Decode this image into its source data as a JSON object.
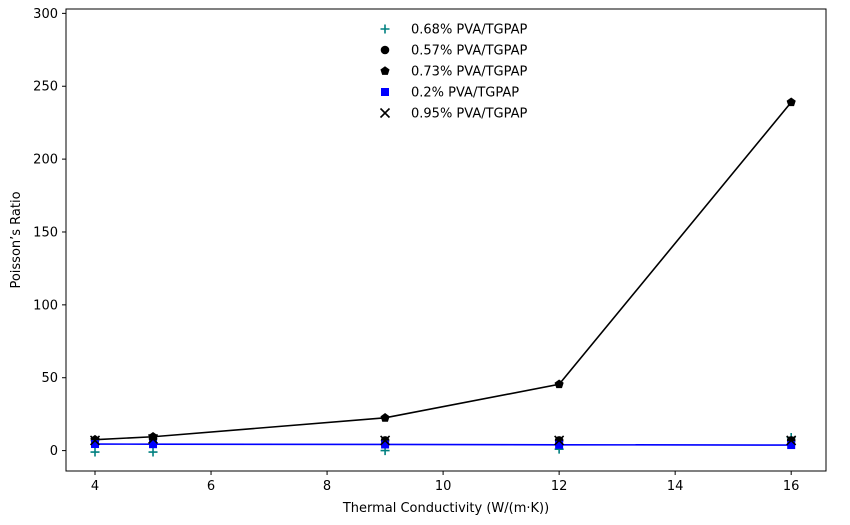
{
  "chart_data": {
    "type": "scatter",
    "title": "",
    "xlabel": "Thermal Conductivity (W/(m·K))",
    "ylabel": "Poisson’s Ratio",
    "xlim": [
      3.5,
      16.6
    ],
    "ylim": [
      -14,
      303
    ],
    "xticks": [
      4,
      6,
      8,
      10,
      12,
      14,
      16
    ],
    "yticks": [
      0,
      50,
      100,
      150,
      200,
      250,
      300
    ],
    "grid": false,
    "legend_position": "top-center",
    "x": [
      4,
      5,
      9,
      12,
      16
    ],
    "series": [
      {
        "name": "0.68% PVA/TGPAP",
        "marker": "plus",
        "color": "#008080",
        "line": false,
        "values": [
          -1,
          -1,
          0,
          1,
          9
        ]
      },
      {
        "name": "0.57% PVA/TGPAP",
        "marker": "circle",
        "color": "#000000",
        "line": false,
        "values": [
          7,
          8,
          7,
          7,
          7
        ]
      },
      {
        "name": "0.73% PVA/TGPAP",
        "marker": "pentagon",
        "color": "#000000",
        "line": true,
        "values": [
          7.5,
          9.5,
          22.5,
          45.5,
          239
        ]
      },
      {
        "name": "0.2% PVA/TGPAP",
        "marker": "square",
        "color": "#0000ff",
        "line": true,
        "values": [
          4.5,
          4.4,
          4.2,
          4.0,
          3.8
        ]
      },
      {
        "name": "0.95% PVA/TGPAP",
        "marker": "x",
        "color": "#000000",
        "line": false,
        "values": [
          7,
          8,
          7,
          7,
          7
        ]
      }
    ]
  }
}
